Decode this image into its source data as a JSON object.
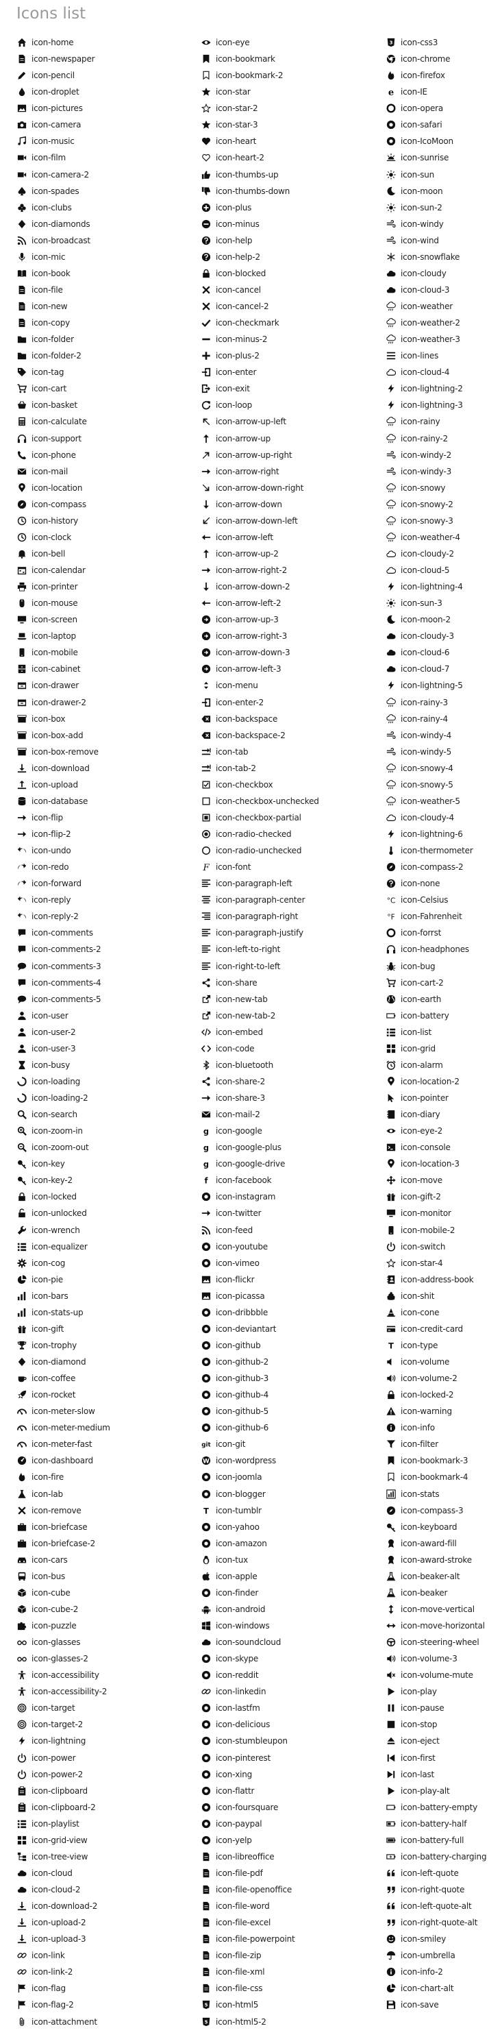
{
  "page": {
    "title": "Icons list"
  },
  "colors": {
    "title": "#9a9a9a",
    "text": "#222222",
    "icon": "#111111",
    "background": "#ffffff"
  },
  "columns": [
    [
      "icon-home",
      "icon-newspaper",
      "icon-pencil",
      "icon-droplet",
      "icon-pictures",
      "icon-camera",
      "icon-music",
      "icon-film",
      "icon-camera-2",
      "icon-spades",
      "icon-clubs",
      "icon-diamonds",
      "icon-broadcast",
      "icon-mic",
      "icon-book",
      "icon-file",
      "icon-new",
      "icon-copy",
      "icon-folder",
      "icon-folder-2",
      "icon-tag",
      "icon-cart",
      "icon-basket",
      "icon-calculate",
      "icon-support",
      "icon-phone",
      "icon-mail",
      "icon-location",
      "icon-compass",
      "icon-history",
      "icon-clock",
      "icon-bell",
      "icon-calendar",
      "icon-printer",
      "icon-mouse",
      "icon-screen",
      "icon-laptop",
      "icon-mobile",
      "icon-cabinet",
      "icon-drawer",
      "icon-drawer-2",
      "icon-box",
      "icon-box-add",
      "icon-box-remove",
      "icon-download",
      "icon-upload",
      "icon-database",
      "icon-flip",
      "icon-flip-2",
      "icon-undo",
      "icon-redo",
      "icon-forward",
      "icon-reply",
      "icon-reply-2",
      "icon-comments",
      "icon-comments-2",
      "icon-comments-3",
      "icon-comments-4",
      "icon-comments-5",
      "icon-user",
      "icon-user-2",
      "icon-user-3",
      "icon-busy",
      "icon-loading",
      "icon-loading-2",
      "icon-search",
      "icon-zoom-in",
      "icon-zoom-out",
      "icon-key",
      "icon-key-2",
      "icon-locked",
      "icon-unlocked",
      "icon-wrench",
      "icon-equalizer",
      "icon-cog",
      "icon-pie",
      "icon-bars",
      "icon-stats-up",
      "icon-gift",
      "icon-trophy",
      "icon-diamond",
      "icon-coffee",
      "icon-rocket",
      "icon-meter-slow",
      "icon-meter-medium",
      "icon-meter-fast",
      "icon-dashboard",
      "icon-fire",
      "icon-lab",
      "icon-remove",
      "icon-briefcase",
      "icon-briefcase-2",
      "icon-cars",
      "icon-bus",
      "icon-cube",
      "icon-cube-2",
      "icon-puzzle",
      "icon-glasses",
      "icon-glasses-2",
      "icon-accessibility",
      "icon-accessibility-2",
      "icon-target",
      "icon-target-2",
      "icon-lightning",
      "icon-power",
      "icon-power-2",
      "icon-clipboard",
      "icon-clipboard-2",
      "icon-playlist",
      "icon-grid-view",
      "icon-tree-view",
      "icon-cloud",
      "icon-cloud-2",
      "icon-download-2",
      "icon-upload-2",
      "icon-upload-3",
      "icon-link",
      "icon-link-2",
      "icon-flag",
      "icon-flag-2",
      "icon-attachment"
    ],
    [
      "icon-eye",
      "icon-bookmark",
      "icon-bookmark-2",
      "icon-star",
      "icon-star-2",
      "icon-star-3",
      "icon-heart",
      "icon-heart-2",
      "icon-thumbs-up",
      "icon-thumbs-down",
      "icon-plus",
      "icon-minus",
      "icon-help",
      "icon-help-2",
      "icon-blocked",
      "icon-cancel",
      "icon-cancel-2",
      "icon-checkmark",
      "icon-minus-2",
      "icon-plus-2",
      "icon-enter",
      "icon-exit",
      "icon-loop",
      "icon-arrow-up-left",
      "icon-arrow-up",
      "icon-arrow-up-right",
      "icon-arrow-right",
      "icon-arrow-down-right",
      "icon-arrow-down",
      "icon-arrow-down-left",
      "icon-arrow-left",
      "icon-arrow-up-2",
      "icon-arrow-right-2",
      "icon-arrow-down-2",
      "icon-arrow-left-2",
      "icon-arrow-up-3",
      "icon-arrow-right-3",
      "icon-arrow-down-3",
      "icon-arrow-left-3",
      "icon-menu",
      "icon-enter-2",
      "icon-backspace",
      "icon-backspace-2",
      "icon-tab",
      "icon-tab-2",
      "icon-checkbox",
      "icon-checkbox-unchecked",
      "icon-checkbox-partial",
      "icon-radio-checked",
      "icon-radio-unchecked",
      "icon-font",
      "icon-paragraph-left",
      "icon-paragraph-center",
      "icon-paragraph-right",
      "icon-paragraph-justify",
      "icon-left-to-right",
      "icon-right-to-left",
      "icon-share",
      "icon-new-tab",
      "icon-new-tab-2",
      "icon-embed",
      "icon-code",
      "icon-bluetooth",
      "icon-share-2",
      "icon-share-3",
      "icon-mail-2",
      "icon-google",
      "icon-google-plus",
      "icon-google-drive",
      "icon-facebook",
      "icon-instagram",
      "icon-twitter",
      "icon-feed",
      "icon-youtube",
      "icon-vimeo",
      "icon-flickr",
      "icon-picassa",
      "icon-dribbble",
      "icon-deviantart",
      "icon-github",
      "icon-github-2",
      "icon-github-3",
      "icon-github-4",
      "icon-github-5",
      "icon-github-6",
      "icon-git",
      "icon-wordpress",
      "icon-joomla",
      "icon-blogger",
      "icon-tumblr",
      "icon-yahoo",
      "icon-amazon",
      "icon-tux",
      "icon-apple",
      "icon-finder",
      "icon-android",
      "icon-windows",
      "icon-soundcloud",
      "icon-skype",
      "icon-reddit",
      "icon-linkedin",
      "icon-lastfm",
      "icon-delicious",
      "icon-stumbleupon",
      "icon-pinterest",
      "icon-xing",
      "icon-flattr",
      "icon-foursquare",
      "icon-paypal",
      "icon-yelp",
      "icon-libreoffice",
      "icon-file-pdf",
      "icon-file-openoffice",
      "icon-file-word",
      "icon-file-excel",
      "icon-file-powerpoint",
      "icon-file-zip",
      "icon-file-xml",
      "icon-file-css",
      "icon-html5",
      "icon-html5-2"
    ],
    [
      "icon-css3",
      "icon-chrome",
      "icon-firefox",
      "icon-IE",
      "icon-opera",
      "icon-safari",
      "icon-IcoMoon",
      "icon-sunrise",
      "icon-sun",
      "icon-moon",
      "icon-sun-2",
      "icon-windy",
      "icon-wind",
      "icon-snowflake",
      "icon-cloudy",
      "icon-cloud-3",
      "icon-weather",
      "icon-weather-2",
      "icon-weather-3",
      "icon-lines",
      "icon-cloud-4",
      "icon-lightning-2",
      "icon-lightning-3",
      "icon-rainy",
      "icon-rainy-2",
      "icon-windy-2",
      "icon-windy-3",
      "icon-snowy",
      "icon-snowy-2",
      "icon-snowy-3",
      "icon-weather-4",
      "icon-cloudy-2",
      "icon-cloud-5",
      "icon-lightning-4",
      "icon-sun-3",
      "icon-moon-2",
      "icon-cloudy-3",
      "icon-cloud-6",
      "icon-cloud-7",
      "icon-lightning-5",
      "icon-rainy-3",
      "icon-rainy-4",
      "icon-windy-4",
      "icon-windy-5",
      "icon-snowy-4",
      "icon-snowy-5",
      "icon-weather-5",
      "icon-cloudy-4",
      "icon-lightning-6",
      "icon-thermometer",
      "icon-compass-2",
      "icon-none",
      "icon-Celsius",
      "icon-Fahrenheit",
      "icon-forrst",
      "icon-headphones",
      "icon-bug",
      "icon-cart-2",
      "icon-earth",
      "icon-battery",
      "icon-list",
      "icon-grid",
      "icon-alarm",
      "icon-location-2",
      "icon-pointer",
      "icon-diary",
      "icon-eye-2",
      "icon-console",
      "icon-location-3",
      "icon-move",
      "icon-gift-2",
      "icon-monitor",
      "icon-mobile-2",
      "icon-switch",
      "icon-star-4",
      "icon-address-book",
      "icon-shit",
      "icon-cone",
      "icon-credit-card",
      "icon-type",
      "icon-volume",
      "icon-volume-2",
      "icon-locked-2",
      "icon-warning",
      "icon-info",
      "icon-filter",
      "icon-bookmark-3",
      "icon-bookmark-4",
      "icon-stats",
      "icon-compass-3",
      "icon-keyboard",
      "icon-award-fill",
      "icon-award-stroke",
      "icon-beaker-alt",
      "icon-beaker",
      "icon-move-vertical",
      "icon-move-horizontal",
      "icon-steering-wheel",
      "icon-volume-3",
      "icon-volume-mute",
      "icon-play",
      "icon-pause",
      "icon-stop",
      "icon-eject",
      "icon-first",
      "icon-last",
      "icon-play-alt",
      "icon-battery-empty",
      "icon-battery-half",
      "icon-battery-full",
      "icon-battery-charging",
      "icon-left-quote",
      "icon-right-quote",
      "icon-left-quote-alt",
      "icon-right-quote-alt",
      "icon-smiley",
      "icon-umbrella",
      "icon-info-2",
      "icon-chart-alt",
      "icon-save"
    ]
  ]
}
